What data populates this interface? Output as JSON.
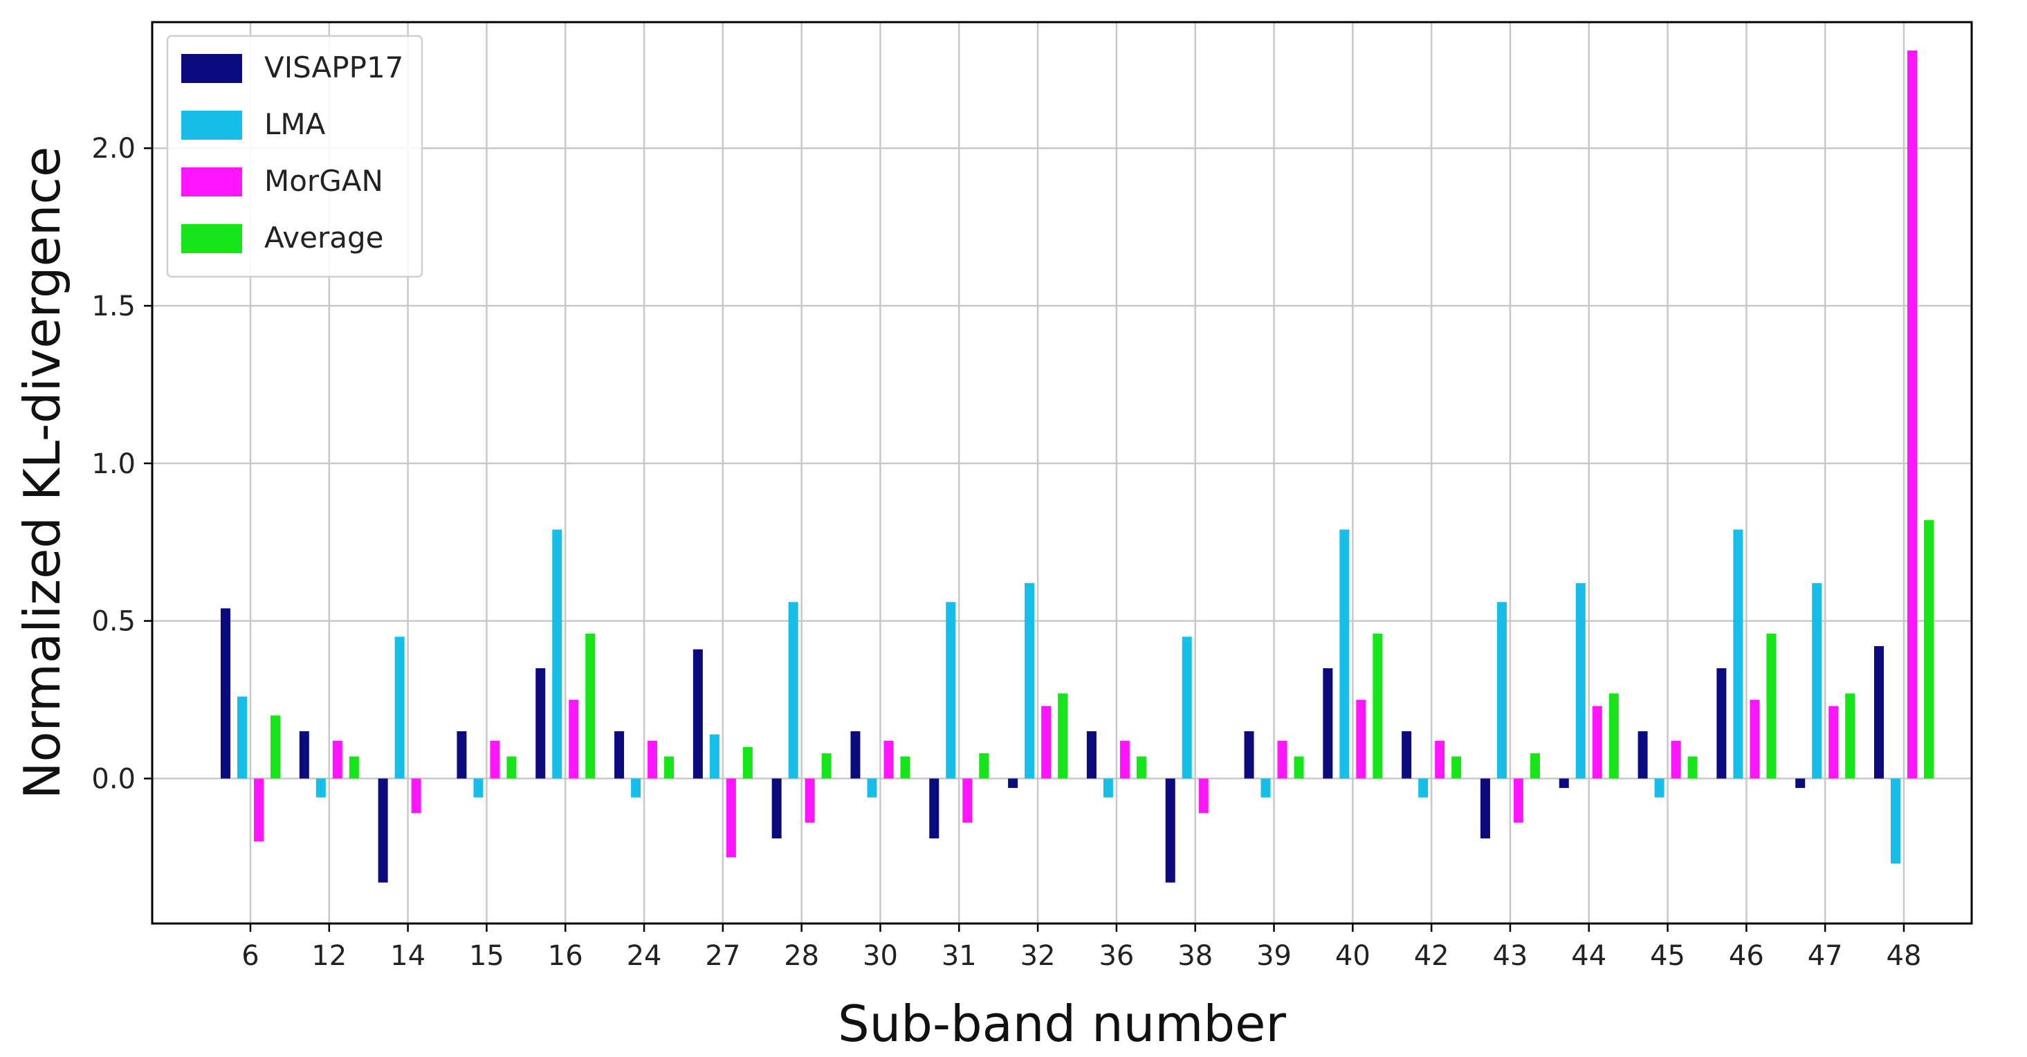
{
  "chart_data": {
    "type": "bar",
    "xlabel": "Sub-band number",
    "ylabel": "Normalized KL-divergence",
    "categories": [
      "6",
      "12",
      "14",
      "15",
      "16",
      "24",
      "27",
      "28",
      "30",
      "31",
      "32",
      "36",
      "38",
      "39",
      "40",
      "42",
      "43",
      "44",
      "45",
      "46",
      "47",
      "48"
    ],
    "ylim": [
      -0.46,
      2.4
    ],
    "yticks": [
      0.0,
      0.5,
      1.0,
      1.5,
      2.0
    ],
    "ytick_labels": [
      "0.0",
      "0.5",
      "1.0",
      "1.5",
      "2.0"
    ],
    "grid": true,
    "legend_position": "top-left",
    "series": [
      {
        "name": "VISAPP17",
        "color": "#0b0b7d",
        "values": [
          0.54,
          0.15,
          -0.33,
          0.15,
          0.35,
          0.15,
          0.41,
          -0.19,
          0.15,
          -0.19,
          -0.03,
          0.15,
          -0.33,
          0.15,
          0.35,
          0.15,
          -0.19,
          -0.03,
          0.15,
          0.35,
          -0.03,
          0.42
        ]
      },
      {
        "name": "LMA",
        "color": "#17bfe8",
        "values": [
          0.26,
          -0.06,
          0.45,
          -0.06,
          0.79,
          -0.06,
          0.14,
          0.56,
          -0.06,
          0.56,
          0.62,
          -0.06,
          0.45,
          -0.06,
          0.79,
          -0.06,
          0.56,
          0.62,
          -0.06,
          0.79,
          0.62,
          -0.27
        ]
      },
      {
        "name": "MorGAN",
        "color": "#ff15ff",
        "values": [
          -0.2,
          0.12,
          -0.11,
          0.12,
          0.25,
          0.12,
          -0.25,
          -0.14,
          0.12,
          -0.14,
          0.23,
          0.12,
          -0.11,
          0.12,
          0.25,
          0.12,
          -0.14,
          0.23,
          0.12,
          0.25,
          0.23,
          2.31
        ]
      },
      {
        "name": "Average",
        "color": "#16e51a",
        "values": [
          0.2,
          0.07,
          0.0,
          0.07,
          0.46,
          0.07,
          0.1,
          0.08,
          0.07,
          0.08,
          0.27,
          0.07,
          0.0,
          0.07,
          0.46,
          0.07,
          0.08,
          0.27,
          0.07,
          0.46,
          0.27,
          0.82
        ]
      }
    ]
  }
}
